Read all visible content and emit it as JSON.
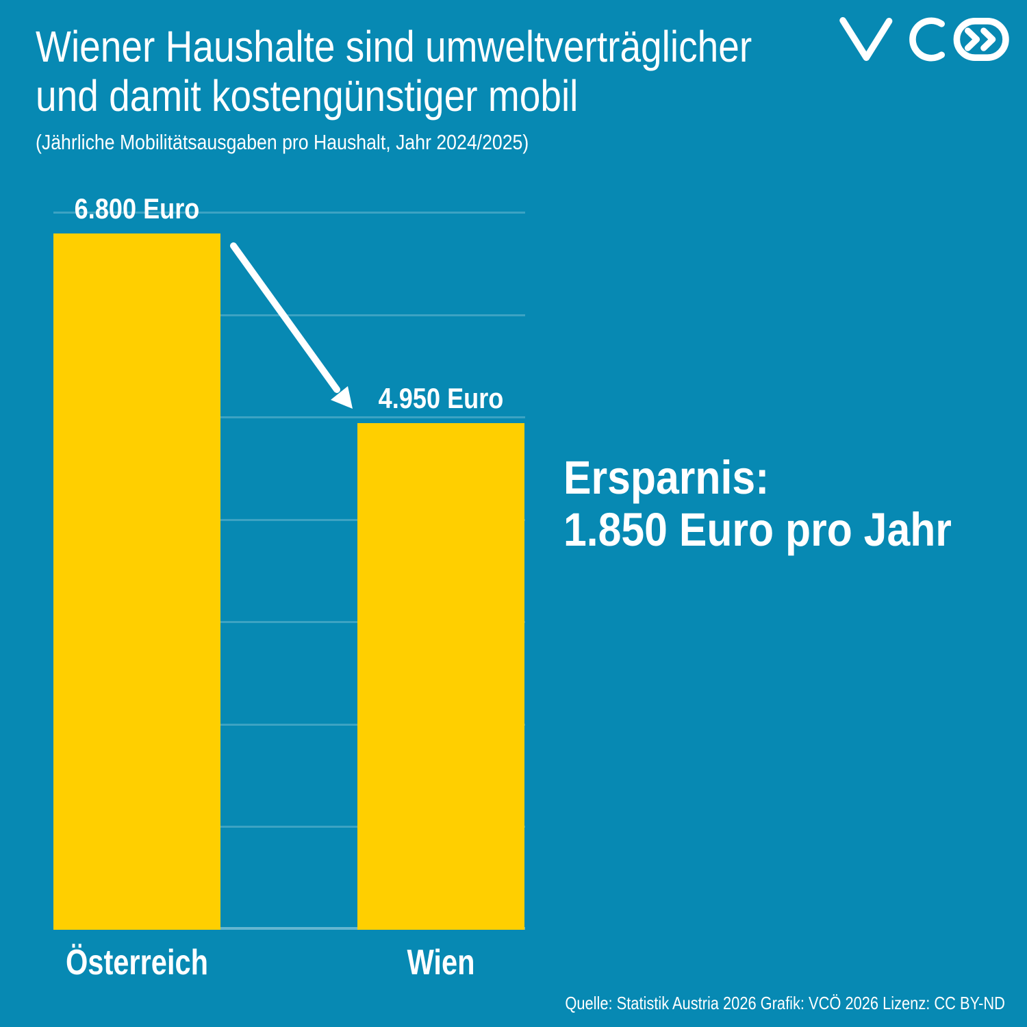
{
  "header": {
    "title_line1": "Wiener Haushalte sind umweltverträglicher",
    "title_line2": "und damit kostengünstiger mobil",
    "subtitle": "(Jährliche Mobilitätsausgaben pro Haushalt, Jahr 2024/2025)",
    "logo_alt": "VCÖ"
  },
  "chart_data": {
    "type": "bar",
    "categories": [
      "Österreich",
      "Wien"
    ],
    "values": [
      6800,
      4950
    ],
    "value_labels": [
      "6.800 Euro",
      "4.950 Euro"
    ],
    "unit": "Euro",
    "title": "Wiener Haushalte sind umweltverträglicher und damit kostengünstiger mobil",
    "xlabel": "",
    "ylabel": "",
    "ylim": [
      0,
      7000
    ],
    "gridline_interval": 1000,
    "grid": true,
    "legend": false,
    "annotation": "Ersparnis: 1.850 Euro pro Jahr"
  },
  "annotation": {
    "line1": "Ersparnis:",
    "line2": "1.850 Euro pro Jahr"
  },
  "footer": {
    "source": "Quelle: Statistik Austria 2026 Grafik: VCÖ 2026 Lizenz: CC BY-ND"
  },
  "colors": {
    "background": "#0789b3",
    "bar": "#ffcf00",
    "text": "#ffffff",
    "gridline": "rgba(255,255,255,0.22)",
    "baseline": "rgba(255,255,255,0.38)"
  }
}
